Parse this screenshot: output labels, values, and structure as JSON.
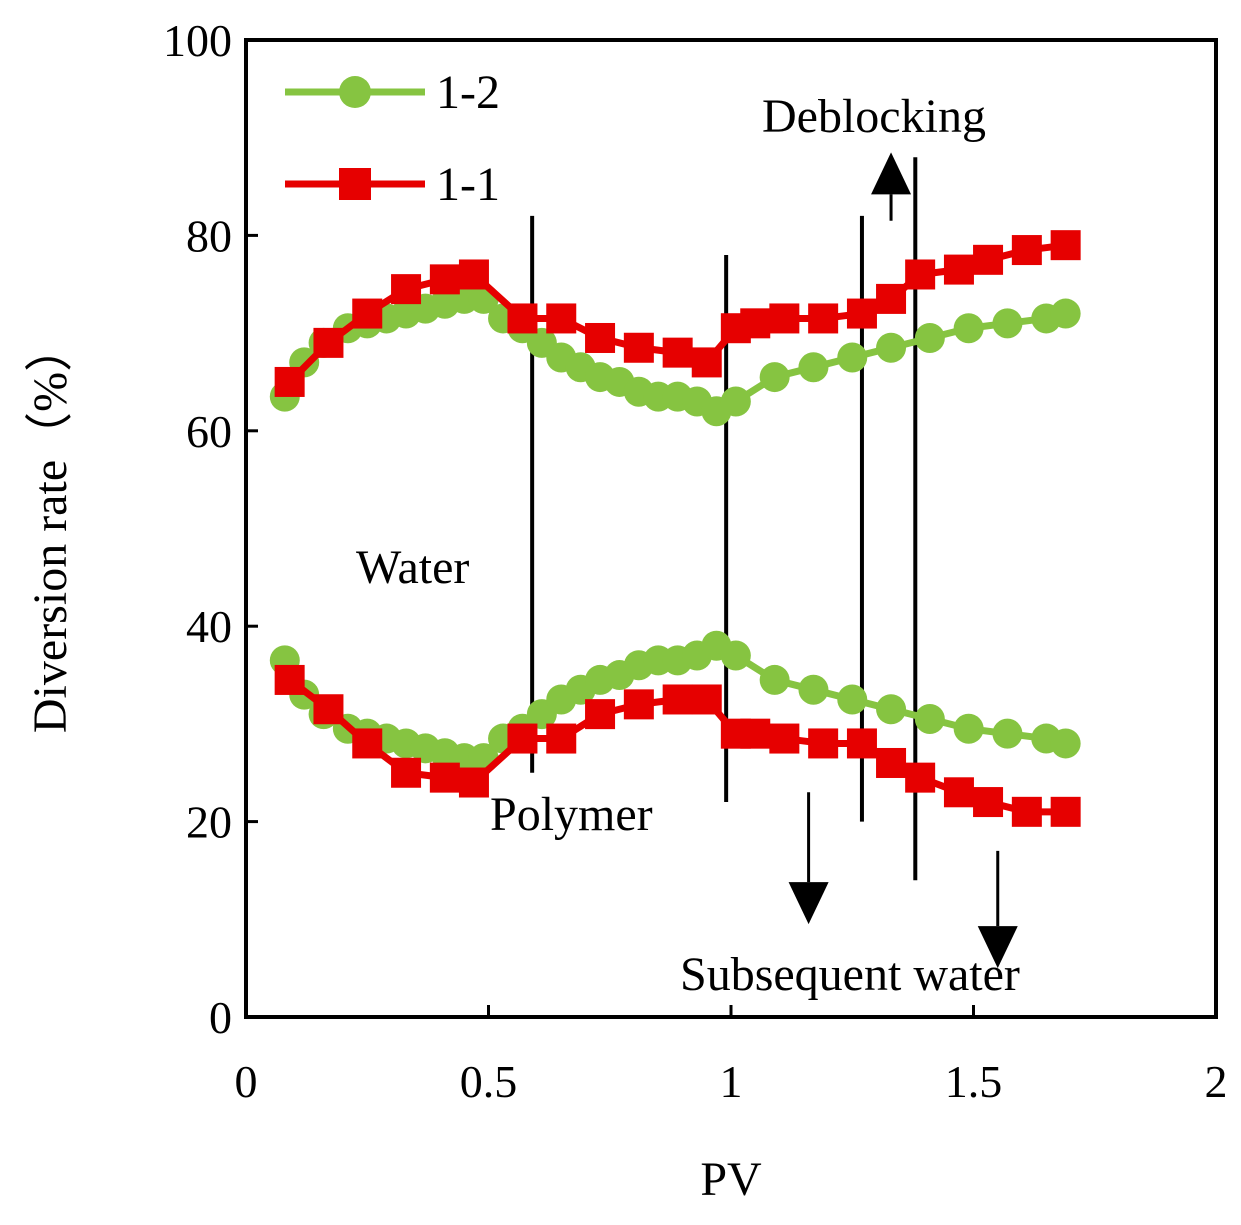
{
  "chart_data": {
    "type": "line",
    "title": "",
    "xlabel": "PV",
    "ylabel": "Diversion rate（%）",
    "xlim": [
      0,
      2
    ],
    "ylim": [
      0,
      100
    ],
    "xticks": [
      "0",
      "0.5",
      "1",
      "1.5",
      "2"
    ],
    "yticks": [
      "0",
      "20",
      "40",
      "60",
      "80",
      "100"
    ],
    "grid": false,
    "legend_position": "top-left",
    "colors": {
      "1-2": "#86c441",
      "1-1": "#e60000",
      "annotation": "#000000"
    },
    "series": [
      {
        "name": "1-2",
        "marker": "circle",
        "upper": {
          "x": [
            0.08,
            0.12,
            0.16,
            0.21,
            0.25,
            0.29,
            0.33,
            0.37,
            0.41,
            0.45,
            0.49,
            0.53,
            0.57,
            0.61,
            0.65,
            0.69,
            0.73,
            0.77,
            0.81,
            0.85,
            0.89,
            0.93,
            0.97,
            1.01,
            1.09,
            1.17,
            1.25,
            1.33,
            1.41,
            1.49,
            1.57,
            1.65,
            1.69
          ],
          "y": [
            63.5,
            67,
            69,
            70.5,
            71,
            71.5,
            72,
            72.5,
            73,
            73.5,
            73.5,
            71.5,
            70.5,
            69,
            67.5,
            66.5,
            65.5,
            65,
            64,
            63.5,
            63.5,
            63,
            62,
            63,
            65.5,
            66.5,
            67.5,
            68.5,
            69.5,
            70.5,
            71,
            71.5,
            72
          ]
        },
        "lower": {
          "x": [
            0.08,
            0.12,
            0.16,
            0.21,
            0.25,
            0.29,
            0.33,
            0.37,
            0.41,
            0.45,
            0.49,
            0.53,
            0.57,
            0.61,
            0.65,
            0.69,
            0.73,
            0.77,
            0.81,
            0.85,
            0.89,
            0.93,
            0.97,
            1.01,
            1.09,
            1.17,
            1.25,
            1.33,
            1.41,
            1.49,
            1.57,
            1.65,
            1.69
          ],
          "y": [
            36.5,
            33,
            31,
            29.5,
            29,
            28.5,
            28,
            27.5,
            27,
            26.5,
            26.5,
            28.5,
            29.5,
            31,
            32.5,
            33.5,
            34.5,
            35,
            36,
            36.5,
            36.5,
            37,
            38,
            37,
            34.5,
            33.5,
            32.5,
            31.5,
            30.5,
            29.5,
            29,
            28.5,
            28
          ]
        }
      },
      {
        "name": "1-1",
        "marker": "square",
        "upper": {
          "x": [
            0.09,
            0.17,
            0.25,
            0.33,
            0.41,
            0.47,
            0.57,
            0.65,
            0.73,
            0.81,
            0.89,
            0.95,
            1.01,
            1.05,
            1.11,
            1.19,
            1.27,
            1.33,
            1.39,
            1.47,
            1.53,
            1.61,
            1.69
          ],
          "y": [
            65,
            69,
            72,
            74.5,
            75.5,
            76,
            71.5,
            71.5,
            69.5,
            68.5,
            68,
            67,
            70.5,
            71,
            71.5,
            71.5,
            72,
            73.5,
            76,
            76.5,
            77.5,
            78.5,
            79
          ]
        },
        "lower": {
          "x": [
            0.09,
            0.17,
            0.25,
            0.33,
            0.41,
            0.47,
            0.57,
            0.65,
            0.73,
            0.81,
            0.89,
            0.95,
            1.01,
            1.05,
            1.11,
            1.19,
            1.27,
            1.33,
            1.39,
            1.47,
            1.53,
            1.61,
            1.69
          ],
          "y": [
            34.5,
            31.5,
            28,
            25,
            24.5,
            24,
            28.5,
            28.5,
            31,
            32,
            32.5,
            32.5,
            29,
            29,
            28.5,
            28,
            28,
            26,
            24.5,
            23,
            22,
            21,
            21
          ]
        }
      }
    ],
    "annotations": {
      "texts": [
        "Water",
        "Polymer",
        "Deblocking",
        "Subsequent water"
      ]
    }
  }
}
